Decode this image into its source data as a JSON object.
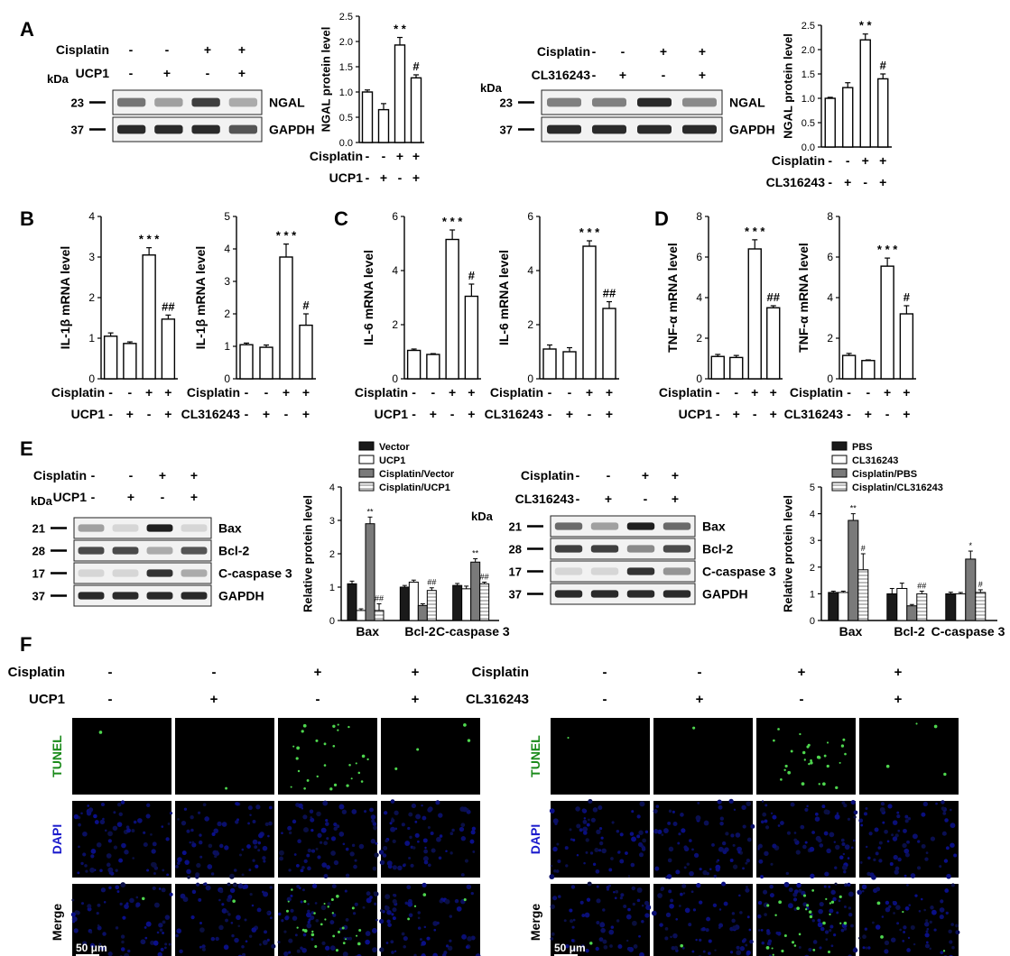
{
  "panel_labels": {
    "A": "A",
    "B": "B",
    "C": "C",
    "D": "D",
    "E": "E",
    "F": "F"
  },
  "blots": {
    "A_left": {
      "conditions": [
        {
          "label": "Cisplatin",
          "signs": [
            "-",
            "-",
            "+",
            "+"
          ]
        },
        {
          "label": "UCP1",
          "signs": [
            "-",
            "+",
            "-",
            "+"
          ]
        }
      ],
      "kda_label": "kDa",
      "lanes": 4,
      "bands": [
        {
          "kda": "23",
          "name": "NGAL",
          "intensity": [
            0.55,
            0.35,
            0.8,
            0.3
          ]
        },
        {
          "kda": "37",
          "name": "GAPDH",
          "intensity": [
            0.9,
            0.9,
            0.9,
            0.7
          ]
        }
      ]
    },
    "A_right": {
      "conditions": [
        {
          "label": "Cisplatin",
          "signs": [
            "-",
            "-",
            "+",
            "+"
          ]
        },
        {
          "label": "CL316243",
          "signs": [
            "-",
            "+",
            "-",
            "+"
          ]
        }
      ],
      "kda_label": "kDa",
      "lanes": 4,
      "bands": [
        {
          "kda": "23",
          "name": "NGAL",
          "intensity": [
            0.5,
            0.5,
            0.9,
            0.45
          ]
        },
        {
          "kda": "37",
          "name": "GAPDH",
          "intensity": [
            0.9,
            0.9,
            0.9,
            0.9
          ]
        }
      ]
    },
    "E_left": {
      "conditions": [
        {
          "label": "Cisplatin",
          "signs": [
            "-",
            "-",
            "+",
            "+"
          ]
        },
        {
          "label": "UCP1",
          "signs": [
            "-",
            "+",
            "-",
            "+"
          ]
        }
      ],
      "kda_label": "kDa",
      "lanes": 4,
      "bands": [
        {
          "kda": "21",
          "name": "Bax",
          "intensity": [
            0.35,
            0.1,
            0.95,
            0.1
          ]
        },
        {
          "kda": "28",
          "name": "Bcl-2",
          "intensity": [
            0.75,
            0.75,
            0.3,
            0.7
          ]
        },
        {
          "kda": "17",
          "name": "C-caspase 3",
          "intensity": [
            0.1,
            0.1,
            0.85,
            0.3
          ]
        },
        {
          "kda": "37",
          "name": "GAPDH",
          "intensity": [
            0.9,
            0.9,
            0.9,
            0.9
          ]
        }
      ]
    },
    "E_right": {
      "conditions": [
        {
          "label": "Cisplatin",
          "signs": [
            "-",
            "-",
            "+",
            "+"
          ]
        },
        {
          "label": "CL316243",
          "signs": [
            "-",
            "+",
            "-",
            "+"
          ]
        }
      ],
      "kda_label": "kDa",
      "lanes": 4,
      "bands": [
        {
          "kda": "21",
          "name": "Bax",
          "intensity": [
            0.6,
            0.35,
            0.95,
            0.6
          ]
        },
        {
          "kda": "28",
          "name": "Bcl-2",
          "intensity": [
            0.8,
            0.8,
            0.45,
            0.75
          ]
        },
        {
          "kda": "17",
          "name": "C-caspase 3",
          "intensity": [
            0.1,
            0.1,
            0.85,
            0.4
          ]
        },
        {
          "kda": "37",
          "name": "GAPDH",
          "intensity": [
            0.9,
            0.9,
            0.9,
            0.9
          ]
        }
      ]
    }
  },
  "chart_data": [
    {
      "id": "A1",
      "type": "bar",
      "ylabel": "NGAL protein level",
      "ylim": [
        0,
        2.5
      ],
      "yticks": [
        "0.0",
        "0.5",
        "1.0",
        "1.5",
        "2.0",
        "2.5"
      ],
      "values": [
        1.0,
        0.65,
        1.93,
        1.28
      ],
      "errors": [
        0.04,
        0.12,
        0.15,
        0.06
      ],
      "annotations": [
        "",
        "",
        "* *",
        "#"
      ],
      "condition_rows": [
        {
          "label": "Cisplatin",
          "signs": [
            "-",
            "-",
            "+",
            "+"
          ]
        },
        {
          "label": "UCP1",
          "signs": [
            "-",
            "+",
            "-",
            "+"
          ]
        }
      ]
    },
    {
      "id": "A2",
      "type": "bar",
      "ylabel": "NGAL protein level",
      "ylim": [
        0,
        2.5
      ],
      "yticks": [
        "0.0",
        "0.5",
        "1.0",
        "1.5",
        "2.0",
        "2.5"
      ],
      "values": [
        1.0,
        1.22,
        2.2,
        1.4
      ],
      "errors": [
        0.02,
        0.1,
        0.12,
        0.1
      ],
      "annotations": [
        "",
        "",
        "* *",
        "#"
      ],
      "condition_rows": [
        {
          "label": "Cisplatin",
          "signs": [
            "-",
            "-",
            "+",
            "+"
          ]
        },
        {
          "label": "CL316243",
          "signs": [
            "-",
            "+",
            "-",
            "+"
          ]
        }
      ]
    },
    {
      "id": "B1",
      "type": "bar",
      "ylabel": "IL-1β mRNA level",
      "ylim": [
        0,
        4
      ],
      "yticks": [
        "0",
        "1",
        "2",
        "3",
        "4"
      ],
      "values": [
        1.05,
        0.87,
        3.05,
        1.47
      ],
      "errors": [
        0.08,
        0.04,
        0.18,
        0.1
      ],
      "annotations": [
        "",
        "",
        "* * *",
        "##"
      ],
      "condition_rows": [
        {
          "label": "Cisplatin",
          "signs": [
            "-",
            "-",
            "+",
            "+"
          ]
        },
        {
          "label": "UCP1",
          "signs": [
            "-",
            "+",
            "-",
            "+"
          ]
        }
      ]
    },
    {
      "id": "B2",
      "type": "bar",
      "ylabel": "IL-1β mRNA level",
      "ylim": [
        0,
        5
      ],
      "yticks": [
        "0",
        "1",
        "2",
        "3",
        "4",
        "5"
      ],
      "values": [
        1.05,
        0.97,
        3.75,
        1.65
      ],
      "errors": [
        0.05,
        0.07,
        0.4,
        0.35
      ],
      "annotations": [
        "",
        "",
        "* * *",
        "#"
      ],
      "condition_rows": [
        {
          "label": "Cisplatin",
          "signs": [
            "-",
            "-",
            "+",
            "+"
          ]
        },
        {
          "label": "CL316243",
          "signs": [
            "-",
            "+",
            "-",
            "+"
          ]
        }
      ]
    },
    {
      "id": "C1",
      "type": "bar",
      "ylabel": "IL-6 mRNA level",
      "ylim": [
        0,
        6
      ],
      "yticks": [
        "0",
        "2",
        "4",
        "6"
      ],
      "values": [
        1.05,
        0.9,
        5.15,
        3.05
      ],
      "errors": [
        0.05,
        0.03,
        0.35,
        0.45
      ],
      "annotations": [
        "",
        "",
        "* * *",
        "#"
      ],
      "condition_rows": [
        {
          "label": "Cisplatin",
          "signs": [
            "-",
            "-",
            "+",
            "+"
          ]
        },
        {
          "label": "UCP1",
          "signs": [
            "-",
            "+",
            "-",
            "+"
          ]
        }
      ]
    },
    {
      "id": "C2",
      "type": "bar",
      "ylabel": "IL-6 mRNA level",
      "ylim": [
        0,
        6
      ],
      "yticks": [
        "0",
        "2",
        "4",
        "6"
      ],
      "values": [
        1.1,
        1.0,
        4.9,
        2.6
      ],
      "errors": [
        0.15,
        0.15,
        0.2,
        0.25
      ],
      "annotations": [
        "",
        "",
        "* * *",
        "##"
      ],
      "condition_rows": [
        {
          "label": "Cisplatin",
          "signs": [
            "-",
            "-",
            "+",
            "+"
          ]
        },
        {
          "label": "CL316243",
          "signs": [
            "-",
            "+",
            "-",
            "+"
          ]
        }
      ]
    },
    {
      "id": "D1",
      "type": "bar",
      "ylabel": "TNF-α mRNA level",
      "ylim": [
        0,
        8
      ],
      "yticks": [
        "0",
        "2",
        "4",
        "6",
        "8"
      ],
      "values": [
        1.1,
        1.05,
        6.4,
        3.5
      ],
      "errors": [
        0.1,
        0.1,
        0.45,
        0.1
      ],
      "annotations": [
        "",
        "",
        "* * *",
        "##"
      ],
      "condition_rows": [
        {
          "label": "Cisplatin",
          "signs": [
            "-",
            "-",
            "+",
            "+"
          ]
        },
        {
          "label": "UCP1",
          "signs": [
            "-",
            "+",
            "-",
            "+"
          ]
        }
      ]
    },
    {
      "id": "D2",
      "type": "bar",
      "ylabel": "TNF-α mRNA level",
      "ylim": [
        0,
        8
      ],
      "yticks": [
        "0",
        "2",
        "4",
        "6",
        "8"
      ],
      "values": [
        1.15,
        0.9,
        5.55,
        3.2
      ],
      "errors": [
        0.1,
        0.03,
        0.4,
        0.4
      ],
      "annotations": [
        "",
        "",
        "* * *",
        "#"
      ],
      "condition_rows": [
        {
          "label": "Cisplatin",
          "signs": [
            "-",
            "-",
            "+",
            "+"
          ]
        },
        {
          "label": "CL316243",
          "signs": [
            "-",
            "+",
            "-",
            "+"
          ]
        }
      ]
    },
    {
      "id": "E1",
      "type": "bar",
      "ylabel": "Relative protein level",
      "ylim": [
        0,
        4
      ],
      "yticks": [
        "0",
        "1",
        "2",
        "3",
        "4"
      ],
      "categories": [
        "Bax",
        "Bcl-2",
        "C-caspase 3"
      ],
      "legend": [
        "Vector",
        "UCP1",
        "Cisplatin/Vector",
        "Cisplatin/UCP1"
      ],
      "series": [
        {
          "name": "Vector",
          "values": [
            1.1,
            1.0,
            1.05
          ],
          "errors": [
            0.08,
            0.05,
            0.06
          ],
          "annotations": [
            "",
            "",
            ""
          ]
        },
        {
          "name": "UCP1",
          "values": [
            0.3,
            1.15,
            0.95
          ],
          "errors": [
            0.05,
            0.06,
            0.08
          ],
          "annotations": [
            "",
            "",
            ""
          ]
        },
        {
          "name": "Cisplatin/Vector",
          "values": [
            2.9,
            0.45,
            1.75
          ],
          "errors": [
            0.2,
            0.05,
            0.1
          ],
          "annotations": [
            "**",
            "",
            "**"
          ]
        },
        {
          "name": "Cisplatin/UCP1",
          "values": [
            0.3,
            0.9,
            1.1
          ],
          "errors": [
            0.2,
            0.08,
            0.05
          ],
          "annotations": [
            "##",
            "##",
            "##"
          ]
        }
      ]
    },
    {
      "id": "E2",
      "type": "bar",
      "ylabel": "Relative protein level",
      "ylim": [
        0,
        5
      ],
      "yticks": [
        "0",
        "1",
        "2",
        "3",
        "4",
        "5"
      ],
      "categories": [
        "Bax",
        "Bcl-2",
        "C-caspase 3"
      ],
      "legend": [
        "PBS",
        "CL316243",
        "Cisplatin/PBS",
        "Cisplatin/CL316243"
      ],
      "series": [
        {
          "name": "PBS",
          "values": [
            1.05,
            1.0,
            1.0
          ],
          "errors": [
            0.05,
            0.2,
            0.06
          ],
          "annotations": [
            "",
            "",
            ""
          ]
        },
        {
          "name": "CL316243",
          "values": [
            1.05,
            1.2,
            1.0
          ],
          "errors": [
            0.05,
            0.2,
            0.05
          ],
          "annotations": [
            "",
            "",
            ""
          ]
        },
        {
          "name": "Cisplatin/PBS",
          "values": [
            3.75,
            0.55,
            2.3
          ],
          "errors": [
            0.25,
            0.05,
            0.3
          ],
          "annotations": [
            "**",
            "",
            "*"
          ]
        },
        {
          "name": "Cisplatin/CL316243",
          "values": [
            1.9,
            1.0,
            1.05
          ],
          "errors": [
            0.6,
            0.1,
            0.1
          ],
          "annotations": [
            "#",
            "##",
            "#"
          ]
        }
      ]
    }
  ],
  "microscopy": {
    "left": {
      "conditions": [
        {
          "label": "Cisplatin",
          "signs": [
            "-",
            "-",
            "+",
            "+"
          ]
        },
        {
          "label": "UCP1",
          "signs": [
            "-",
            "+",
            "-",
            "+"
          ]
        }
      ],
      "rows": [
        {
          "label": "TUNEL",
          "color": "#1a8a1a"
        },
        {
          "label": "DAPI",
          "color": "#1a1acc"
        },
        {
          "label": "Merge",
          "color": "#000000"
        }
      ],
      "scale_bar": "50 μm"
    },
    "right": {
      "conditions": [
        {
          "label": "Cisplatin",
          "signs": [
            "-",
            "-",
            "+",
            "+"
          ]
        },
        {
          "label": "CL316243",
          "signs": [
            "-",
            "+",
            "-",
            "+"
          ]
        }
      ],
      "rows": [
        {
          "label": "TUNEL",
          "color": "#1a8a1a"
        },
        {
          "label": "DAPI",
          "color": "#1a1acc"
        },
        {
          "label": "Merge",
          "color": "#000000"
        }
      ],
      "scale_bar": "50 μm"
    }
  }
}
